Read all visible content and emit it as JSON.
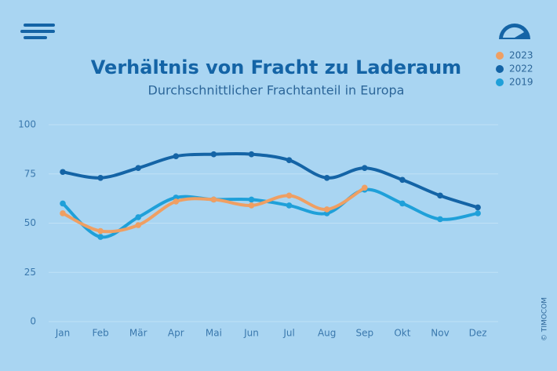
{
  "chart_data": {
    "type": "line",
    "title": "Verhältnis von Fracht zu Laderaum",
    "subtitle": "Durchschnittlicher Frachtanteil in Europa",
    "copyright": "© TIMOCOM",
    "categories": [
      "Jan",
      "Feb",
      "Mär",
      "Apr",
      "Mai",
      "Jun",
      "Jul",
      "Aug",
      "Sep",
      "Okt",
      "Nov",
      "Dez"
    ],
    "series": [
      {
        "name": "2023",
        "color": "#ef9f63",
        "values": [
          55,
          46,
          49,
          61,
          62,
          59,
          64,
          57,
          68,
          null,
          null,
          null
        ]
      },
      {
        "name": "2022",
        "color": "#1464a6",
        "values": [
          76,
          73,
          78,
          84,
          85,
          85,
          82,
          73,
          78,
          72,
          64,
          58
        ]
      },
      {
        "name": "2019",
        "color": "#1fa0d9",
        "values": [
          60,
          43,
          53,
          63,
          62,
          62,
          59,
          55,
          67,
          60,
          52,
          55
        ]
      }
    ],
    "ylim": [
      0,
      100
    ],
    "yticks": [
      0,
      25,
      50,
      75,
      100
    ],
    "grid": true,
    "legend": "top-right"
  }
}
